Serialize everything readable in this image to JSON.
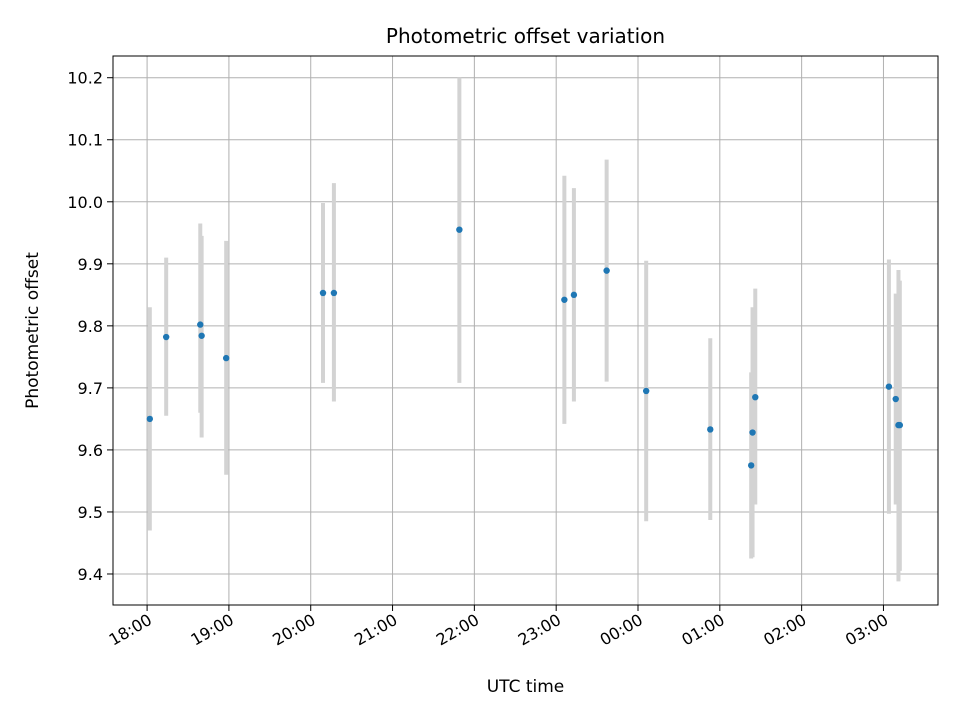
{
  "chart_data": {
    "type": "scatter",
    "title": "Photometric offset variation",
    "xlabel": "UTC time",
    "ylabel": "Photometric offset",
    "x_axis_type": "time",
    "x_start_date": "2000-01-01",
    "xlim": [
      "17:35",
      "03:40"
    ],
    "ylim": [
      9.35,
      10.235
    ],
    "x_ticks": [
      "18:00",
      "19:00",
      "20:00",
      "21:00",
      "22:00",
      "23:00",
      "00:00",
      "01:00",
      "02:00",
      "03:00"
    ],
    "y_ticks": [
      "9.4",
      "9.5",
      "9.6",
      "9.7",
      "9.8",
      "9.9",
      "10.0",
      "10.1",
      "10.2"
    ],
    "y_tick_values": [
      9.4,
      9.5,
      9.6,
      9.7,
      9.8,
      9.9,
      10.0,
      10.1,
      10.2
    ],
    "grid": true,
    "series": [
      {
        "name": "",
        "color": "#1f77b4",
        "errorbar_color": "#d3d3d3",
        "points": [
          {
            "x": "18:02",
            "y": 9.65,
            "ylow": 9.47,
            "yhigh": 9.83
          },
          {
            "x": "18:14",
            "y": 9.782,
            "ylow": 9.655,
            "yhigh": 9.91
          },
          {
            "x": "18:39",
            "y": 9.802,
            "ylow": 9.66,
            "yhigh": 9.965
          },
          {
            "x": "18:40",
            "y": 9.784,
            "ylow": 9.62,
            "yhigh": 9.945
          },
          {
            "x": "18:58",
            "y": 9.748,
            "ylow": 9.56,
            "yhigh": 9.937
          },
          {
            "x": "20:09",
            "y": 9.853,
            "ylow": 9.708,
            "yhigh": 9.998
          },
          {
            "x": "20:17",
            "y": 9.853,
            "ylow": 9.678,
            "yhigh": 10.03
          },
          {
            "x": "21:49",
            "y": 9.955,
            "ylow": 9.708,
            "yhigh": 10.2
          },
          {
            "x": "23:06",
            "y": 9.842,
            "ylow": 9.642,
            "yhigh": 10.042
          },
          {
            "x": "23:13",
            "y": 9.85,
            "ylow": 9.678,
            "yhigh": 10.022
          },
          {
            "x": "23:37",
            "y": 9.889,
            "ylow": 9.71,
            "yhigh": 10.068
          },
          {
            "x": "00:06",
            "y": 9.695,
            "ylow": 9.485,
            "yhigh": 9.905
          },
          {
            "x": "00:53",
            "y": 9.633,
            "ylow": 9.487,
            "yhigh": 9.78
          },
          {
            "x": "01:23",
            "y": 9.575,
            "ylow": 9.425,
            "yhigh": 9.725
          },
          {
            "x": "01:24",
            "y": 9.628,
            "ylow": 9.427,
            "yhigh": 9.83
          },
          {
            "x": "01:26",
            "y": 9.685,
            "ylow": 9.512,
            "yhigh": 9.86
          },
          {
            "x": "03:04",
            "y": 9.702,
            "ylow": 9.497,
            "yhigh": 9.907
          },
          {
            "x": "03:09",
            "y": 9.682,
            "ylow": 9.512,
            "yhigh": 9.852
          },
          {
            "x": "03:11",
            "y": 9.64,
            "ylow": 9.388,
            "yhigh": 9.89
          },
          {
            "x": "03:12",
            "y": 9.64,
            "ylow": 9.405,
            "yhigh": 9.873
          }
        ]
      }
    ]
  }
}
